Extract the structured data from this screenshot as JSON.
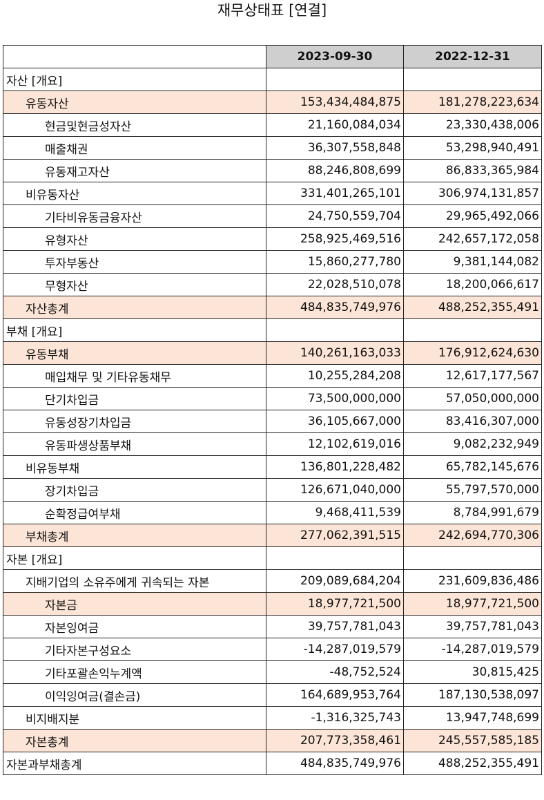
{
  "title": "재무상태표 [연결]",
  "columns": [
    "2023-09-30",
    "2022-12-31"
  ],
  "rows": [
    {
      "label": "자산 [개요]",
      "level": 0,
      "highlight": false,
      "values": [
        "",
        ""
      ]
    },
    {
      "label": "유동자산",
      "level": 1,
      "highlight": true,
      "values": [
        "153,434,484,875",
        "181,278,223,634"
      ]
    },
    {
      "label": "현금및현금성자산",
      "level": 2,
      "highlight": false,
      "values": [
        "21,160,084,034",
        "23,330,438,006"
      ]
    },
    {
      "label": "매출채권",
      "level": 2,
      "highlight": false,
      "values": [
        "36,307,558,848",
        "53,298,940,491"
      ]
    },
    {
      "label": "유동재고자산",
      "level": 2,
      "highlight": false,
      "values": [
        "88,246,808,699",
        "86,833,365,984"
      ]
    },
    {
      "label": "비유동자산",
      "level": 1,
      "highlight": false,
      "values": [
        "331,401,265,101",
        "306,974,131,857"
      ]
    },
    {
      "label": "기타비유동금융자산",
      "level": 2,
      "highlight": false,
      "values": [
        "24,750,559,704",
        "29,965,492,066"
      ]
    },
    {
      "label": "유형자산",
      "level": 2,
      "highlight": false,
      "values": [
        "258,925,469,516",
        "242,657,172,058"
      ]
    },
    {
      "label": "투자부동산",
      "level": 2,
      "highlight": false,
      "values": [
        "15,860,277,780",
        "9,381,144,082"
      ]
    },
    {
      "label": "무형자산",
      "level": 2,
      "highlight": false,
      "values": [
        "22,028,510,078",
        "18,200,066,617"
      ]
    },
    {
      "label": "자산총계",
      "level": 1,
      "highlight": true,
      "values": [
        "484,835,749,976",
        "488,252,355,491"
      ]
    },
    {
      "label": "부채 [개요]",
      "level": 0,
      "highlight": false,
      "values": [
        "",
        ""
      ]
    },
    {
      "label": "유동부채",
      "level": 1,
      "highlight": true,
      "values": [
        "140,261,163,033",
        "176,912,624,630"
      ]
    },
    {
      "label": "매입채무 및 기타유동채무",
      "level": 2,
      "highlight": false,
      "values": [
        "10,255,284,208",
        "12,617,177,567"
      ]
    },
    {
      "label": "단기차입금",
      "level": 2,
      "highlight": false,
      "values": [
        "73,500,000,000",
        "57,050,000,000"
      ]
    },
    {
      "label": "유동성장기차입금",
      "level": 2,
      "highlight": false,
      "values": [
        "36,105,667,000",
        "83,416,307,000"
      ]
    },
    {
      "label": "유동파생상품부채",
      "level": 2,
      "highlight": false,
      "values": [
        "12,102,619,016",
        "9,082,232,949"
      ]
    },
    {
      "label": "비유동부채",
      "level": 1,
      "highlight": false,
      "values": [
        "136,801,228,482",
        "65,782,145,676"
      ]
    },
    {
      "label": "장기차입금",
      "level": 2,
      "highlight": false,
      "values": [
        "126,671,040,000",
        "55,797,570,000"
      ]
    },
    {
      "label": "순확정급여부채",
      "level": 2,
      "highlight": false,
      "values": [
        "9,468,411,539",
        "8,784,991,679"
      ]
    },
    {
      "label": "부채총계",
      "level": 1,
      "highlight": true,
      "values": [
        "277,062,391,515",
        "242,694,770,306"
      ]
    },
    {
      "label": "자본 [개요]",
      "level": 0,
      "highlight": false,
      "values": [
        "",
        ""
      ]
    },
    {
      "label": "지배기업의 소유주에게 귀속되는 자본",
      "level": 1,
      "highlight": false,
      "values": [
        "209,089,684,204",
        "231,609,836,486"
      ]
    },
    {
      "label": "자본금",
      "level": 2,
      "highlight": true,
      "values": [
        "18,977,721,500",
        "18,977,721,500"
      ]
    },
    {
      "label": "자본잉여금",
      "level": 2,
      "highlight": false,
      "values": [
        "39,757,781,043",
        "39,757,781,043"
      ]
    },
    {
      "label": "기타자본구성요소",
      "level": 2,
      "highlight": false,
      "values": [
        "-14,287,019,579",
        "-14,287,019,579"
      ]
    },
    {
      "label": "기타포괄손익누계액",
      "level": 2,
      "highlight": false,
      "values": [
        "-48,752,524",
        "30,815,425"
      ]
    },
    {
      "label": "이익잉여금(결손금)",
      "level": 2,
      "highlight": false,
      "values": [
        "164,689,953,764",
        "187,130,538,097"
      ]
    },
    {
      "label": "비지배지분",
      "level": 1,
      "highlight": false,
      "values": [
        "-1,316,325,743",
        "13,947,748,699"
      ]
    },
    {
      "label": "자본총계",
      "level": 1,
      "highlight": true,
      "values": [
        "207,773,358,461",
        "245,557,585,185"
      ]
    },
    {
      "label": "자본과부채총계",
      "level": 0,
      "highlight": false,
      "values": [
        "484,835,749,976",
        "488,252,355,491"
      ]
    }
  ]
}
